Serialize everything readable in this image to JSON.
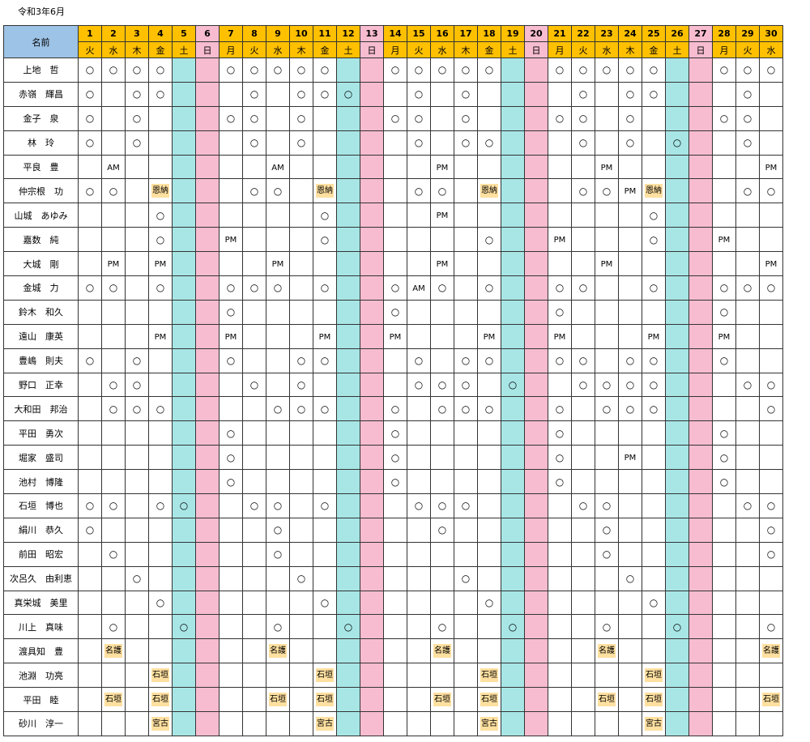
{
  "title": "令和3年6月",
  "name_header": "名前",
  "days": [
    "1",
    "2",
    "3",
    "4",
    "5",
    "6",
    "7",
    "8",
    "9",
    "10",
    "11",
    "12",
    "13",
    "14",
    "15",
    "16",
    "17",
    "18",
    "19",
    "20",
    "21",
    "22",
    "23",
    "24",
    "25",
    "26",
    "27",
    "28",
    "29",
    "30"
  ],
  "weekdays": [
    "火",
    "水",
    "木",
    "金",
    "土",
    "日",
    "月",
    "火",
    "水",
    "木",
    "金",
    "土",
    "日",
    "月",
    "火",
    "水",
    "木",
    "金",
    "土",
    "日",
    "月",
    "火",
    "水",
    "木",
    "金",
    "土",
    "日",
    "月",
    "火",
    "水"
  ],
  "colors": {
    "name_header": "#9dc3e6",
    "date_header": "#ffc000",
    "saturday": "#a8e6e6",
    "sunday": "#f7bcd0",
    "tag": "#ffe0a0"
  },
  "rows": [
    {
      "name": "上地　哲",
      "cells": {
        "1": "○",
        "2": "○",
        "3": "○",
        "4": "○",
        "7": "○",
        "8": "○",
        "9": "○",
        "10": "○",
        "11": "○",
        "14": "○",
        "15": "○",
        "16": "○",
        "17": "○",
        "18": "○",
        "21": "○",
        "22": "○",
        "23": "○",
        "24": "○",
        "25": "○",
        "28": "○",
        "29": "○",
        "30": "○"
      }
    },
    {
      "name": "赤嶺　輝昌",
      "cells": {
        "1": "○",
        "3": "○",
        "4": "○",
        "8": "○",
        "10": "○",
        "11": "○",
        "12": "○",
        "15": "○",
        "17": "○",
        "22": "○",
        "24": "○",
        "25": "○",
        "29": "○"
      }
    },
    {
      "name": "金子　泉",
      "cells": {
        "1": "○",
        "3": "○",
        "7": "○",
        "8": "○",
        "10": "○",
        "14": "○",
        "15": "○",
        "17": "○",
        "21": "○",
        "22": "○",
        "24": "○",
        "28": "○",
        "29": "○"
      }
    },
    {
      "name": "林　玲",
      "cells": {
        "1": "○",
        "3": "○",
        "8": "○",
        "10": "○",
        "15": "○",
        "17": "○",
        "18": "○",
        "22": "○",
        "24": "○",
        "26": "○",
        "29": "○"
      }
    },
    {
      "name": "平良　豊",
      "cells": {
        "2": "AM",
        "9": "AM",
        "16": "PM",
        "23": "PM",
        "30": "PM"
      }
    },
    {
      "name": "仲宗根　功",
      "cells": {
        "1": "○",
        "2": "○",
        "4": "恩納",
        "8": "○",
        "9": "○",
        "11": "恩納",
        "15": "○",
        "16": "○",
        "18": "恩納",
        "22": "○",
        "23": "○",
        "24": "PM",
        "25": "恩納",
        "29": "○",
        "30": "○"
      }
    },
    {
      "name": "山城　あゆみ",
      "cells": {
        "4": "○",
        "11": "○",
        "16": "PM",
        "25": "○"
      }
    },
    {
      "name": "嘉数　純",
      "cells": {
        "4": "○",
        "7": "PM",
        "11": "○",
        "18": "○",
        "21": "PM",
        "25": "○",
        "28": "PM"
      }
    },
    {
      "name": "大城　剛",
      "cells": {
        "2": "PM",
        "4": "PM",
        "9": "PM",
        "16": "PM",
        "23": "PM",
        "30": "PM"
      }
    },
    {
      "name": "金城　力",
      "cells": {
        "1": "○",
        "2": "○",
        "4": "○",
        "7": "○",
        "8": "○",
        "9": "○",
        "11": "○",
        "14": "○",
        "15": "AM",
        "16": "○",
        "18": "○",
        "21": "○",
        "22": "○",
        "25": "○",
        "28": "○",
        "29": "○",
        "30": "○"
      }
    },
    {
      "name": "鈴木　和久",
      "cells": {
        "7": "○",
        "14": "○",
        "21": "○",
        "28": "○"
      }
    },
    {
      "name": "遠山　康英",
      "cells": {
        "4": "PM",
        "7": "PM",
        "11": "PM",
        "14": "PM",
        "18": "PM",
        "21": "PM",
        "25": "PM",
        "28": "PM"
      }
    },
    {
      "name": "豊嶋　則夫",
      "cells": {
        "1": "○",
        "3": "○",
        "7": "○",
        "10": "○",
        "11": "○",
        "15": "○",
        "17": "○",
        "18": "○",
        "21": "○",
        "22": "○",
        "24": "○",
        "25": "○",
        "28": "○"
      }
    },
    {
      "name": "野口　正幸",
      "cells": {
        "2": "○",
        "3": "○",
        "8": "○",
        "10": "○",
        "15": "○",
        "16": "○",
        "17": "○",
        "19": "○",
        "22": "○",
        "23": "○",
        "24": "○",
        "25": "○",
        "29": "○",
        "30": "○"
      }
    },
    {
      "name": "大和田　邦治",
      "cells": {
        "2": "○",
        "3": "○",
        "4": "○",
        "9": "○",
        "10": "○",
        "11": "○",
        "14": "○",
        "16": "○",
        "17": "○",
        "18": "○",
        "21": "○",
        "23": "○",
        "24": "○",
        "25": "○",
        "30": "○"
      }
    },
    {
      "name": "平田　勇次",
      "cells": {
        "7": "○",
        "14": "○",
        "21": "○",
        "28": "○"
      }
    },
    {
      "name": "堀家　盛司",
      "cells": {
        "7": "○",
        "14": "○",
        "21": "○",
        "24": "PM",
        "28": "○"
      }
    },
    {
      "name": "池村　博隆",
      "cells": {
        "7": "○",
        "14": "○",
        "21": "○",
        "28": "○"
      }
    },
    {
      "name": "石垣　博也",
      "cells": {
        "1": "○",
        "2": "○",
        "4": "○",
        "5": "○",
        "8": "○",
        "9": "○",
        "11": "○",
        "15": "○",
        "16": "○",
        "17": "○",
        "22": "○",
        "23": "○",
        "29": "○",
        "30": "○"
      }
    },
    {
      "name": "絹川　恭久",
      "cells": {
        "1": "○",
        "9": "○",
        "16": "○",
        "23": "○",
        "30": "○"
      }
    },
    {
      "name": "前田　昭宏",
      "cells": {
        "2": "○",
        "9": "○",
        "23": "○",
        "30": "○"
      }
    },
    {
      "name": "次呂久　由利恵",
      "cells": {
        "3": "○",
        "10": "○",
        "17": "○",
        "24": "○"
      }
    },
    {
      "name": "真栄城　美里",
      "cells": {
        "4": "○",
        "11": "○",
        "18": "○",
        "25": "○"
      }
    },
    {
      "name": "川上　真味",
      "cells": {
        "2": "○",
        "5": "○",
        "9": "○",
        "12": "○",
        "16": "○",
        "19": "○",
        "23": "○",
        "26": "○",
        "30": "○"
      }
    },
    {
      "name": "渡具知　豊",
      "cells": {
        "2": "名護",
        "9": "名護",
        "16": "名護",
        "23": "名護",
        "30": "名護"
      }
    },
    {
      "name": "池淵　功亮",
      "cells": {
        "4": "石垣",
        "11": "石垣",
        "18": "石垣",
        "25": "石垣"
      }
    },
    {
      "name": "平田　睦",
      "cells": {
        "2": "石垣",
        "4": "石垣",
        "9": "石垣",
        "11": "石垣",
        "16": "石垣",
        "18": "石垣",
        "23": "石垣",
        "25": "石垣",
        "30": "石垣"
      }
    },
    {
      "name": "砂川　淳一",
      "cells": {
        "4": "宮古",
        "11": "宮古",
        "18": "宮古",
        "25": "宮古"
      }
    }
  ]
}
